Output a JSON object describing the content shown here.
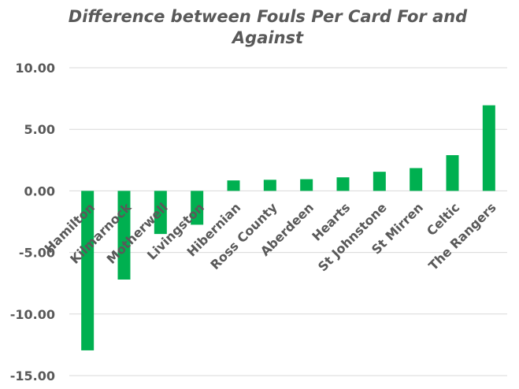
{
  "chart_data": {
    "type": "bar",
    "title": "Difference between Fouls Per Card For and Against",
    "categories": [
      "Hamilton",
      "Kilmarnock",
      "Motherwell",
      "Livingston",
      "Hibernian",
      "Ross County",
      "Aberdeen",
      "Hearts",
      "St Johnstone",
      "St Mirren",
      "Celtic",
      "The Rangers"
    ],
    "values": [
      -12.95,
      -7.2,
      -3.5,
      -2.75,
      0.85,
      0.9,
      0.95,
      1.1,
      1.55,
      1.85,
      2.9,
      6.95
    ],
    "ylim": [
      -15,
      10
    ],
    "yticks": [
      "10.00",
      "5.00",
      "0.00",
      "-5.00",
      "-10.00",
      "-15.00"
    ],
    "ytick_values": [
      10,
      5,
      0,
      -5,
      -10,
      -15
    ],
    "xlabel": "",
    "ylabel": "",
    "grid": true,
    "legend": "none",
    "bar_color": "#00b050"
  }
}
